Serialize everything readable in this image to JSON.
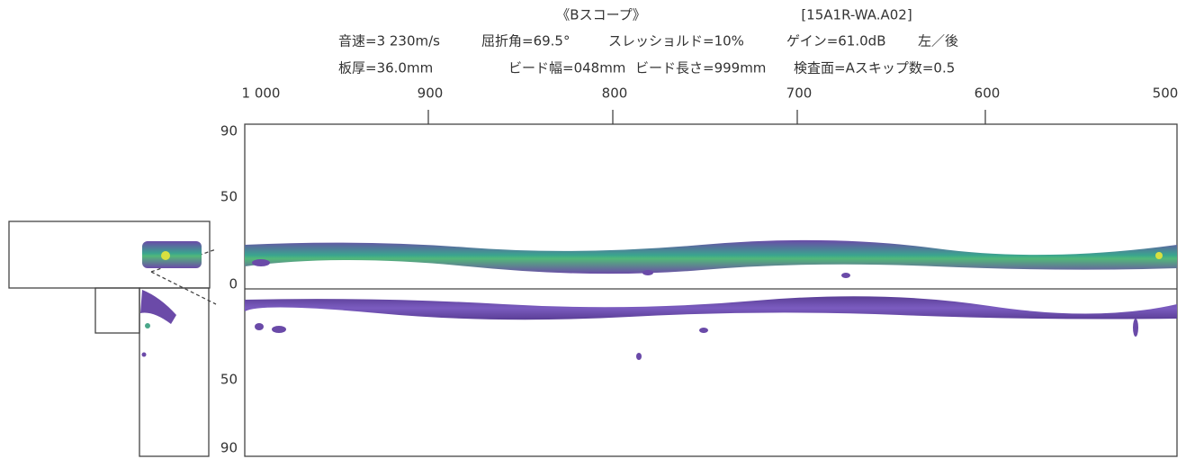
{
  "header": {
    "title": "《Bスコープ》",
    "file_id": "[15A1R-WA.A02]",
    "line1": [
      "音速=3 230m/s",
      "屈折角=69.5°",
      "スレッショルド=10%",
      "ゲイン=61.0dB",
      "左／後"
    ],
    "line2": [
      "板厚=36.0mm",
      "ビード幅=048mm",
      "ビード長さ=999mm",
      "検査面=Aスキップ数=0.5"
    ]
  },
  "x_axis": {
    "labels": [
      "1 000",
      "900",
      "800",
      "700",
      "600",
      "500"
    ]
  },
  "y_axis": {
    "labels": [
      "90",
      "50",
      "0",
      "50",
      "90"
    ]
  }
}
